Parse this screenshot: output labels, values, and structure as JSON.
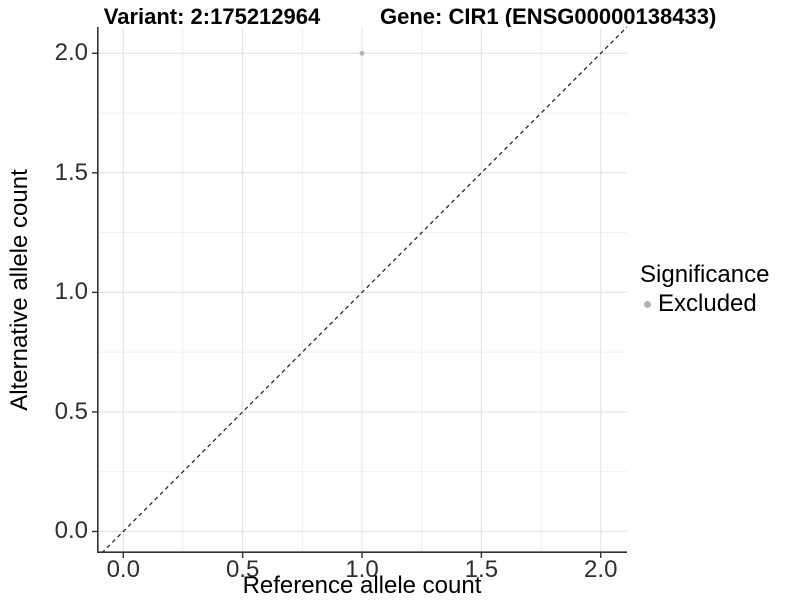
{
  "header": {
    "variant_title": "Variant: 2:175212964",
    "gene_title": "Gene: CIR1 (ENSG00000138433)"
  },
  "chart_data": {
    "type": "scatter",
    "title": "Variant: 2:175212964    Gene: CIR1 (ENSG00000138433)",
    "xlabel": "Reference allele count",
    "ylabel": "Alternative allele count",
    "xlim": [
      -0.11,
      2.11
    ],
    "ylim": [
      -0.09,
      2.11
    ],
    "x_ticks": [
      0.0,
      0.5,
      1.0,
      1.5,
      2.0
    ],
    "y_ticks": [
      0.0,
      0.5,
      1.0,
      1.5,
      2.0
    ],
    "x_minor_ticks": [
      0.25,
      0.75,
      1.25,
      1.75
    ],
    "y_minor_ticks": [
      0.25,
      0.75,
      1.25,
      1.75
    ],
    "grid": true,
    "series": [
      {
        "name": "Excluded",
        "color": "#b3b3b3",
        "points": [
          [
            1.0,
            2.0
          ]
        ]
      }
    ],
    "reference_line": {
      "type": "identity",
      "style": "dashed",
      "color": "#1a1a1a"
    },
    "legend": {
      "title": "Significance",
      "position": "right",
      "items": [
        {
          "label": "Excluded",
          "color": "#b3b3b3"
        }
      ]
    },
    "colors": {
      "background": "#ffffff",
      "grid_major": "#e4e4e4",
      "grid_minor": "#efefef",
      "axis": "#333333",
      "tick_text": "#303030"
    }
  }
}
